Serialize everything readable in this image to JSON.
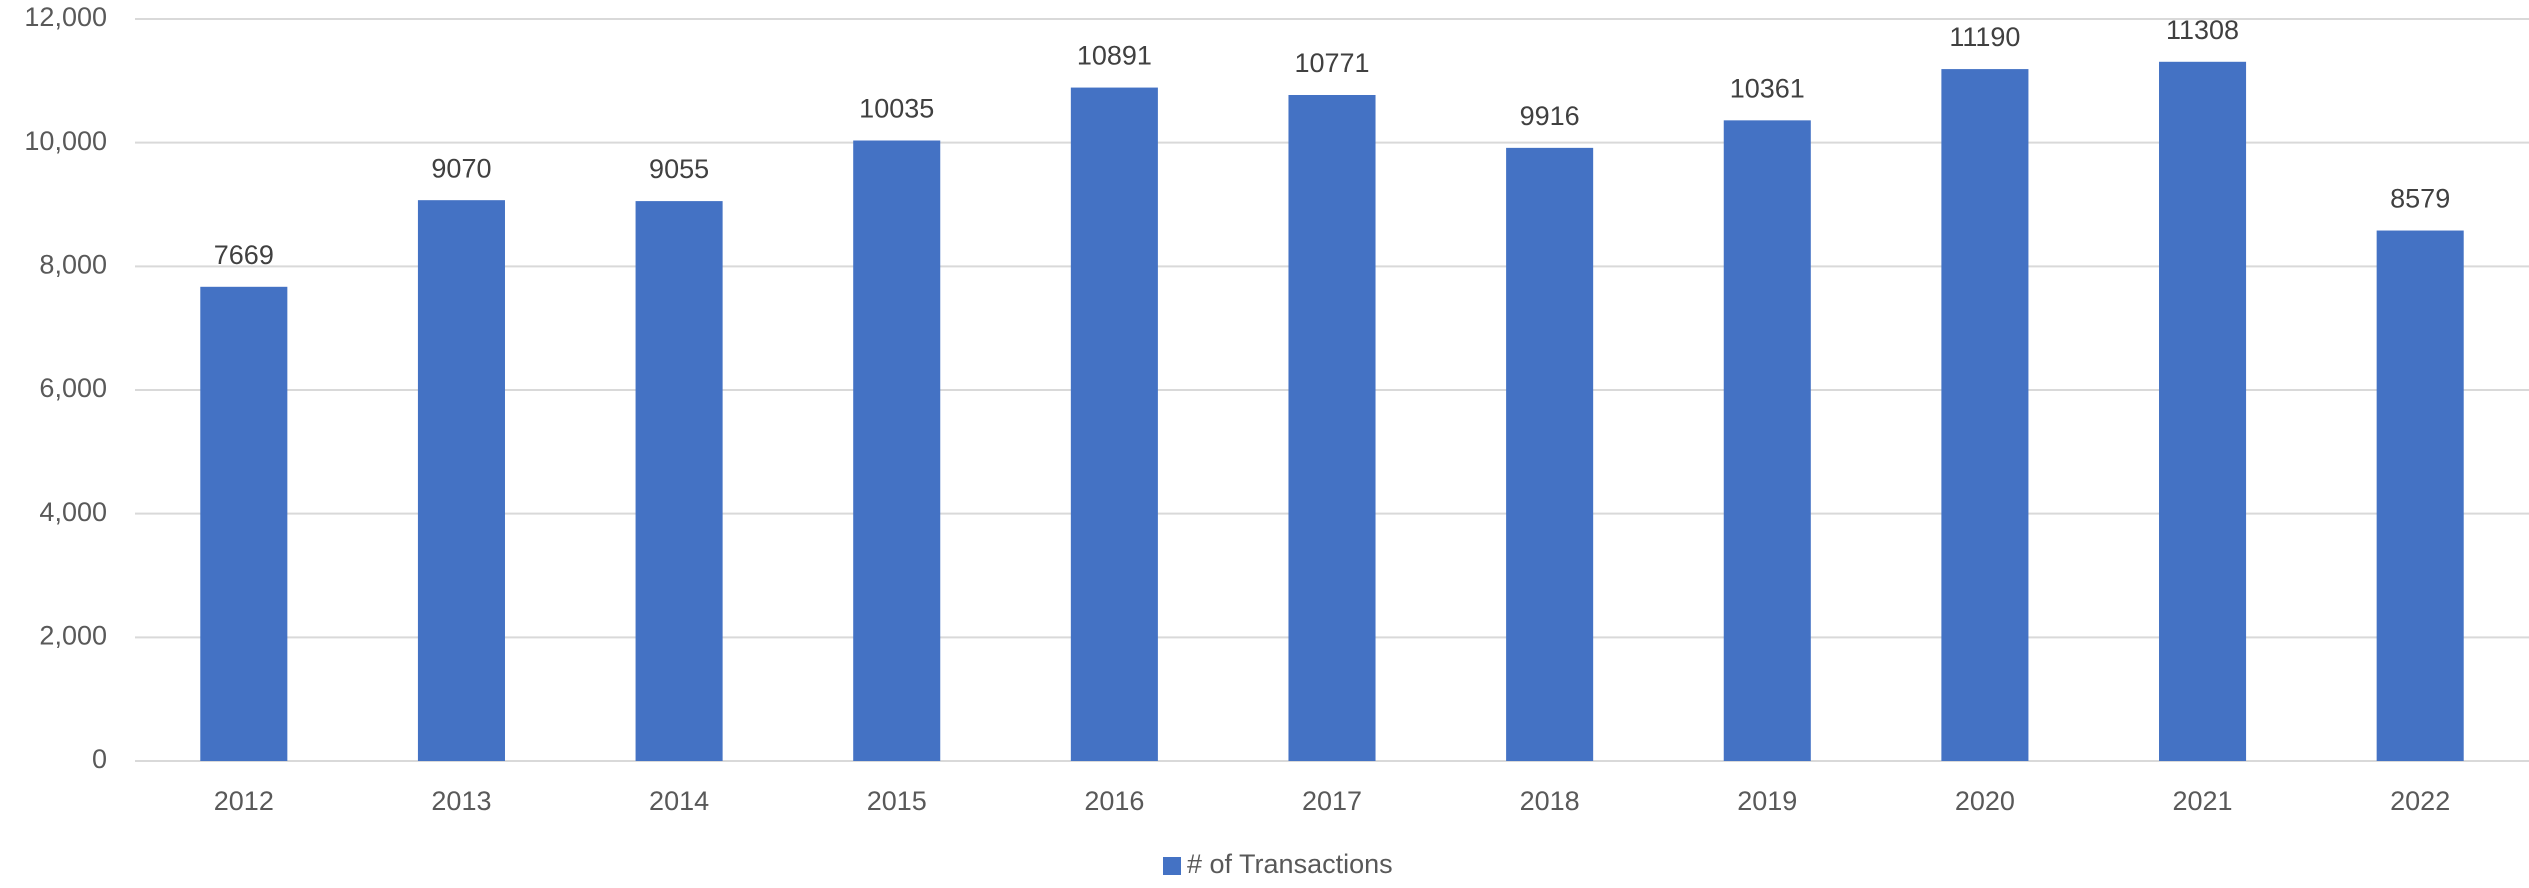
{
  "chart_data": {
    "type": "bar",
    "categories": [
      "2012",
      "2013",
      "2014",
      "2015",
      "2016",
      "2017",
      "2018",
      "2019",
      "2020",
      "2021",
      "2022"
    ],
    "series": [
      {
        "name": "# of Transactions",
        "color": "#4472c4",
        "values": [
          7669,
          9070,
          9055,
          10035,
          10891,
          10771,
          9916,
          10361,
          11190,
          11308,
          8579
        ]
      }
    ],
    "ylim": [
      0,
      12000
    ],
    "yticks": [
      0,
      {
        "value": 2000,
        "label": "2,000"
      },
      {
        "value": 4000,
        "label": "4,000"
      },
      {
        "value": 6000,
        "label": "6,000"
      },
      {
        "value": 8000,
        "label": "8,000"
      },
      {
        "value": 10000,
        "label": "10,000"
      },
      {
        "value": 12000,
        "label": "12,000"
      }
    ],
    "grid": true,
    "legend": "bottom"
  }
}
